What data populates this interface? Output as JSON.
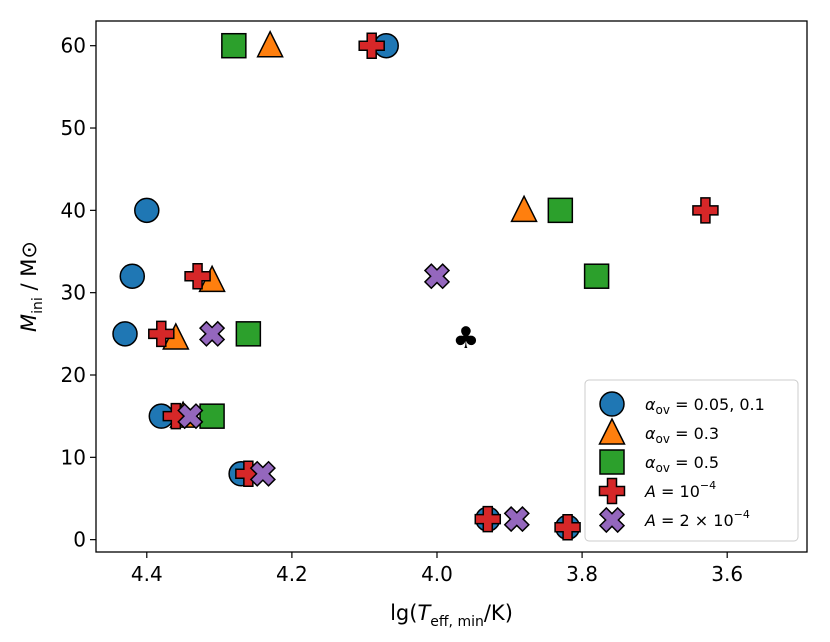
{
  "chart_data": {
    "type": "scatter",
    "xlabel_parts": [
      "lg(",
      "T",
      "eff, min",
      "/K)"
    ],
    "ylabel_parts": [
      "M",
      "ini",
      " / M",
      "⊙"
    ],
    "xlim": [
      4.47,
      3.49
    ],
    "ylim": [
      -1.5,
      63
    ],
    "xticks": [
      4.4,
      4.2,
      4.0,
      3.8,
      3.6
    ],
    "xtick_labels": [
      "4.4",
      "4.2",
      "4.0",
      "3.8",
      "3.6"
    ],
    "yticks": [
      0,
      10,
      20,
      30,
      40,
      50,
      60
    ],
    "ytick_labels": [
      "0",
      "10",
      "20",
      "30",
      "40",
      "50",
      "60"
    ],
    "legend_position": "lower-right",
    "series": [
      {
        "name": "α_ov = 0.05, 0.1",
        "marker": "circle",
        "color": "#1f77b4",
        "legend_parts": [
          "α",
          "ov",
          " = 0.05, 0.1"
        ],
        "points": [
          {
            "x": 4.07,
            "y": 60
          },
          {
            "x": 4.4,
            "y": 40
          },
          {
            "x": 4.42,
            "y": 32
          },
          {
            "x": 4.43,
            "y": 25
          },
          {
            "x": 4.38,
            "y": 15
          },
          {
            "x": 4.27,
            "y": 8
          },
          {
            "x": 3.93,
            "y": 2.5
          },
          {
            "x": 3.82,
            "y": 1.5
          }
        ]
      },
      {
        "name": "α_ov = 0.3",
        "marker": "triangle",
        "color": "#ff7f0e",
        "legend_parts": [
          "α",
          "ov",
          " = 0.3"
        ],
        "points": [
          {
            "x": 4.23,
            "y": 60
          },
          {
            "x": 3.88,
            "y": 40
          },
          {
            "x": 4.31,
            "y": 31.5
          },
          {
            "x": 4.36,
            "y": 24.5
          },
          {
            "x": 4.35,
            "y": 15
          }
        ]
      },
      {
        "name": "α_ov = 0.5",
        "marker": "square",
        "color": "#2ca02c",
        "legend_parts": [
          "α",
          "ov",
          " = 0.5"
        ],
        "points": [
          {
            "x": 4.28,
            "y": 60
          },
          {
            "x": 3.83,
            "y": 40
          },
          {
            "x": 3.78,
            "y": 32
          },
          {
            "x": 4.26,
            "y": 25
          },
          {
            "x": 4.31,
            "y": 15
          }
        ]
      },
      {
        "name": "A = 10^-4",
        "marker": "plus",
        "color": "#d62728",
        "legend_parts": [
          "A",
          " = 10",
          "−4"
        ],
        "points": [
          {
            "x": 4.09,
            "y": 60
          },
          {
            "x": 3.63,
            "y": 40
          },
          {
            "x": 4.33,
            "y": 32
          },
          {
            "x": 4.38,
            "y": 25
          },
          {
            "x": 4.36,
            "y": 15
          },
          {
            "x": 4.26,
            "y": 8
          },
          {
            "x": 3.93,
            "y": 2.5
          },
          {
            "x": 3.82,
            "y": 1.5
          }
        ]
      },
      {
        "name": "A = 2 × 10^-4",
        "marker": "x",
        "color": "#9467bd",
        "legend_parts": [
          "A",
          " = 2 × 10",
          "−4"
        ],
        "points": [
          {
            "x": 4.0,
            "y": 32
          },
          {
            "x": 4.31,
            "y": 25
          },
          {
            "x": 4.34,
            "y": 15
          },
          {
            "x": 4.24,
            "y": 8
          },
          {
            "x": 3.89,
            "y": 2.5
          }
        ]
      }
    ],
    "annotations": [
      {
        "text": "♣",
        "x": 3.96,
        "y": 24.5,
        "color": "#000000"
      }
    ]
  }
}
